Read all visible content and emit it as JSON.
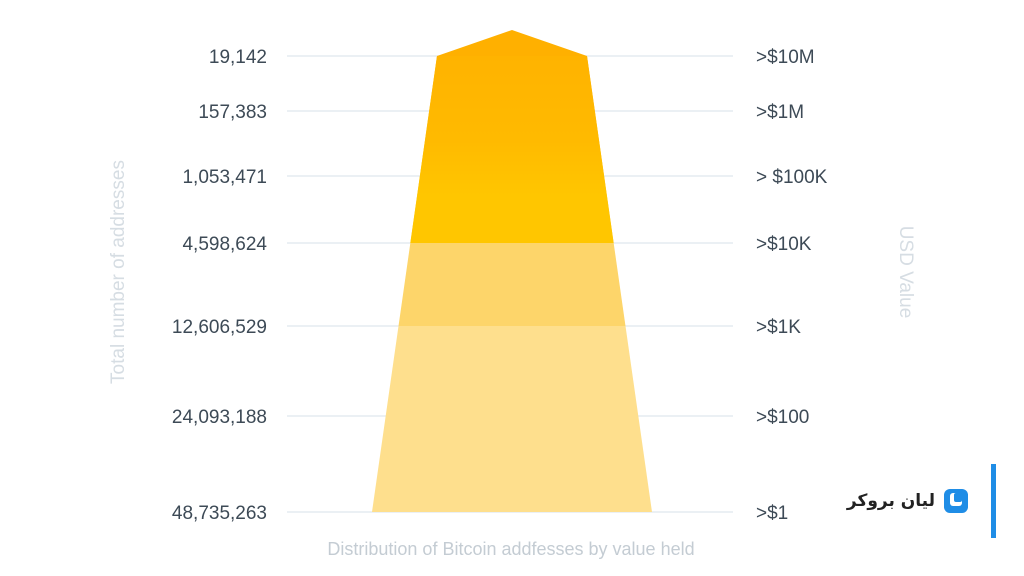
{
  "chart_data": {
    "type": "funnel",
    "xlabel": "Distribution of Bitcoin addfesses by value held",
    "ylabel_left": "Total number of addresses",
    "ylabel_right": "USD Value",
    "rows": [
      {
        "addresses": "19,142",
        "usd": ">$10M",
        "color": "#ffb300"
      },
      {
        "addresses": "157,383",
        "usd": ">$1M",
        "color": "#ffba00"
      },
      {
        "addresses": "1,053,471",
        "usd": "> $100K",
        "color": "#ffc600"
      },
      {
        "addresses": "4,598,624",
        "usd": ">$10K",
        "color": "#fcc92e"
      },
      {
        "addresses": "12,606,529",
        "usd": ">$1K",
        "color": "#fdd56a"
      },
      {
        "addresses": "24,093,188",
        "usd": ">$100",
        "color": "#fedf8d"
      },
      {
        "addresses": "48,735,263",
        "usd": ">$1",
        "color": "#fedf8d"
      }
    ],
    "top_color": "#ffb000",
    "grid": true,
    "grid_color": "#dfe7ee"
  },
  "logo": {
    "text": "لیان بروکر",
    "icon": "lian-broker-logo-icon",
    "accent": "#1f8de6"
  }
}
